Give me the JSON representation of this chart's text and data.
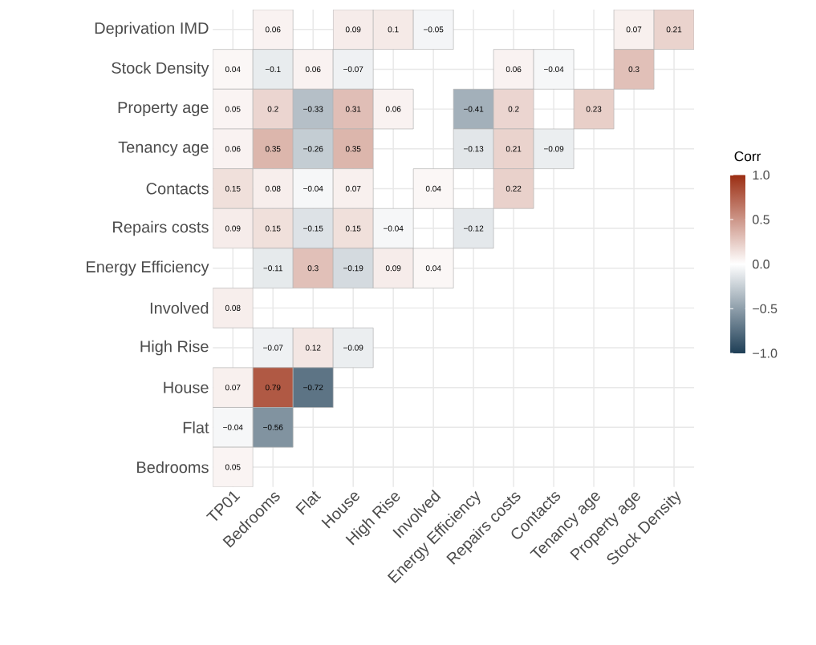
{
  "chart_data": {
    "type": "heatmap",
    "categories": [
      "TP01",
      "Bedrooms",
      "Flat",
      "House",
      "High Rise",
      "Involved",
      "Energy Efficiency",
      "Repairs costs",
      "Contacts",
      "Tenancy age",
      "Property age",
      "Stock Density"
    ],
    "y_categories": [
      "Deprivation IMD",
      "Stock Density",
      "Property age",
      "Tenancy age",
      "Contacts",
      "Repairs costs",
      "Energy Efficiency",
      "Involved",
      "High Rise",
      "House",
      "Flat",
      "Bedrooms"
    ],
    "cells": [
      [
        null,
        0.06,
        null,
        0.09,
        0.1,
        -0.05,
        null,
        null,
        null,
        null,
        0.07,
        0.21
      ],
      [
        0.04,
        -0.1,
        0.06,
        -0.07,
        null,
        null,
        null,
        0.06,
        -0.04,
        null,
        0.3,
        null
      ],
      [
        0.05,
        0.2,
        -0.33,
        0.31,
        0.06,
        null,
        -0.41,
        0.2,
        null,
        0.23,
        null,
        null
      ],
      [
        0.06,
        0.35,
        -0.26,
        0.35,
        null,
        null,
        -0.13,
        0.21,
        -0.09,
        null,
        null,
        null
      ],
      [
        0.15,
        0.08,
        -0.04,
        0.07,
        null,
        0.04,
        null,
        0.22,
        null,
        null,
        null,
        null
      ],
      [
        0.09,
        0.15,
        -0.15,
        0.15,
        -0.04,
        null,
        -0.12,
        null,
        null,
        null,
        null,
        null
      ],
      [
        null,
        -0.11,
        0.3,
        -0.19,
        0.09,
        0.04,
        null,
        null,
        null,
        null,
        null,
        null
      ],
      [
        0.08,
        null,
        null,
        null,
        null,
        null,
        null,
        null,
        null,
        null,
        null,
        null
      ],
      [
        null,
        -0.07,
        0.12,
        -0.09,
        null,
        null,
        null,
        null,
        null,
        null,
        null,
        null
      ],
      [
        0.07,
        0.79,
        -0.72,
        null,
        null,
        null,
        null,
        null,
        null,
        null,
        null,
        null
      ],
      [
        -0.04,
        -0.56,
        null,
        null,
        null,
        null,
        null,
        null,
        null,
        null,
        null,
        null
      ],
      [
        0.05,
        null,
        null,
        null,
        null,
        null,
        null,
        null,
        null,
        null,
        null,
        null
      ]
    ],
    "cell_labels": [
      [
        null,
        "0.06",
        null,
        "0.09",
        "0.1",
        "−0.05",
        null,
        null,
        null,
        null,
        "0.07",
        "0.21"
      ],
      [
        "0.04",
        "−0.1",
        "0.06",
        "−0.07",
        null,
        null,
        null,
        "0.06",
        "−0.04",
        null,
        "0.3",
        null
      ],
      [
        "0.05",
        "0.2",
        "−0.33",
        "0.31",
        "0.06",
        null,
        "−0.41",
        "0.2",
        null,
        "0.23",
        null,
        null
      ],
      [
        "0.06",
        "0.35",
        "−0.26",
        "0.35",
        null,
        null,
        "−0.13",
        "0.21",
        "−0.09",
        null,
        null,
        null
      ],
      [
        "0.15",
        "0.08",
        "−0.04",
        "0.07",
        null,
        "0.04",
        null,
        "0.22",
        null,
        null,
        null,
        null
      ],
      [
        "0.09",
        "0.15",
        "−0.15",
        "0.15",
        "−0.04",
        null,
        "−0.12",
        null,
        null,
        null,
        null,
        null
      ],
      [
        null,
        "−0.11",
        "0.3",
        "−0.19",
        "0.09",
        "0.04",
        null,
        null,
        null,
        null,
        null,
        null
      ],
      [
        "0.08",
        null,
        null,
        null,
        null,
        null,
        null,
        null,
        null,
        null,
        null,
        null
      ],
      [
        null,
        "−0.07",
        "0.12",
        "−0.09",
        null,
        null,
        null,
        null,
        null,
        null,
        null,
        null
      ],
      [
        "0.07",
        "0.79",
        "−0.72",
        null,
        null,
        null,
        null,
        null,
        null,
        null,
        null,
        null
      ],
      [
        "−0.04",
        "−0.56",
        null,
        null,
        null,
        null,
        null,
        null,
        null,
        null,
        null,
        null
      ],
      [
        "0.05",
        null,
        null,
        null,
        null,
        null,
        null,
        null,
        null,
        null,
        null,
        null
      ]
    ],
    "clabel": "Corr",
    "clim": [
      -1,
      1
    ],
    "cticks": [
      {
        "value": -1,
        "label": "−1.0"
      },
      {
        "value": -0.5,
        "label": "−0.5"
      },
      {
        "value": 0,
        "label": "0.0"
      },
      {
        "value": 0.5,
        "label": "0.5"
      },
      {
        "value": 1,
        "label": "1.0"
      }
    ],
    "grid": true
  }
}
